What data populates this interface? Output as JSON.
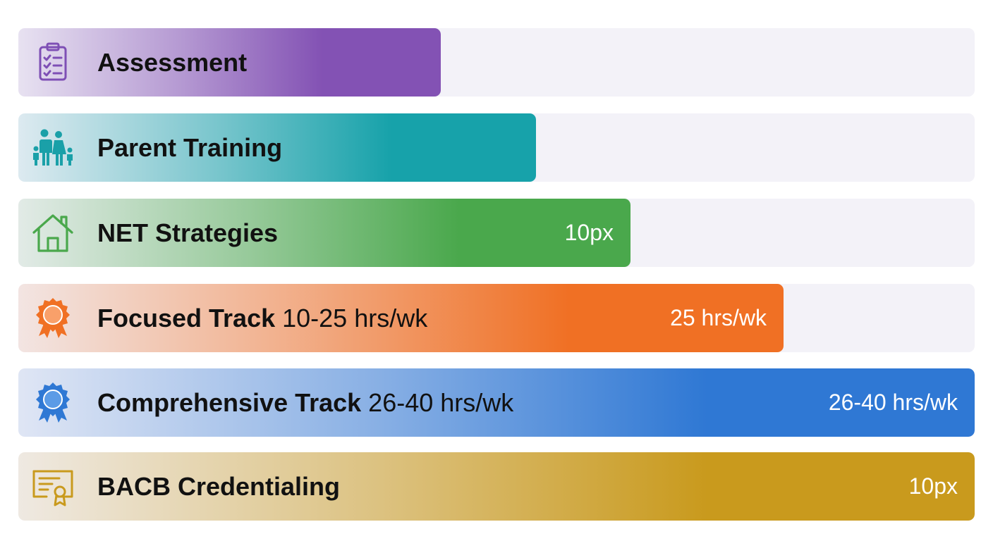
{
  "chart_data": {
    "type": "bar",
    "orientation": "horizontal",
    "categories": [
      "Assessment",
      "Parent Training",
      "NET Strategies",
      "Focused Track",
      "Comprehensive Track",
      "BACB Credentialing"
    ],
    "values": [
      0.442,
      0.541,
      0.64,
      0.8,
      1.0,
      1.0
    ],
    "xlim": [
      0,
      1
    ],
    "grid": false,
    "legend": "none",
    "bars": [
      {
        "name": "Assessment",
        "sub": "",
        "value_label": "",
        "value": 0.442,
        "color": "#8352b4",
        "icon": "clipboard-icon"
      },
      {
        "name": "Parent Training",
        "sub": "",
        "value_label": "",
        "value": 0.541,
        "color": "#17a2aa",
        "icon": "family-icon"
      },
      {
        "name": "NET Strategies",
        "sub": "",
        "value_label": "10px",
        "value": 0.64,
        "color": "#4aa84c",
        "icon": "house-icon"
      },
      {
        "name": "Focused Track",
        "sub": " 10-25 hrs/wk",
        "value_label": "25 hrs/wk",
        "value": 0.8,
        "color": "#f07024",
        "icon": "award-ribbon-icon"
      },
      {
        "name": "Comprehensive Track",
        "sub": " 26-40 hrs/wk",
        "value_label": "26-40 hrs/wk",
        "value": 1.0,
        "color": "#2f78d4",
        "icon": "award-ribbon-icon"
      },
      {
        "name": "BACB Credentialing",
        "sub": "",
        "value_label": "10px",
        "value": 1.0,
        "color": "#c99a1d",
        "icon": "certificate-icon"
      }
    ]
  }
}
